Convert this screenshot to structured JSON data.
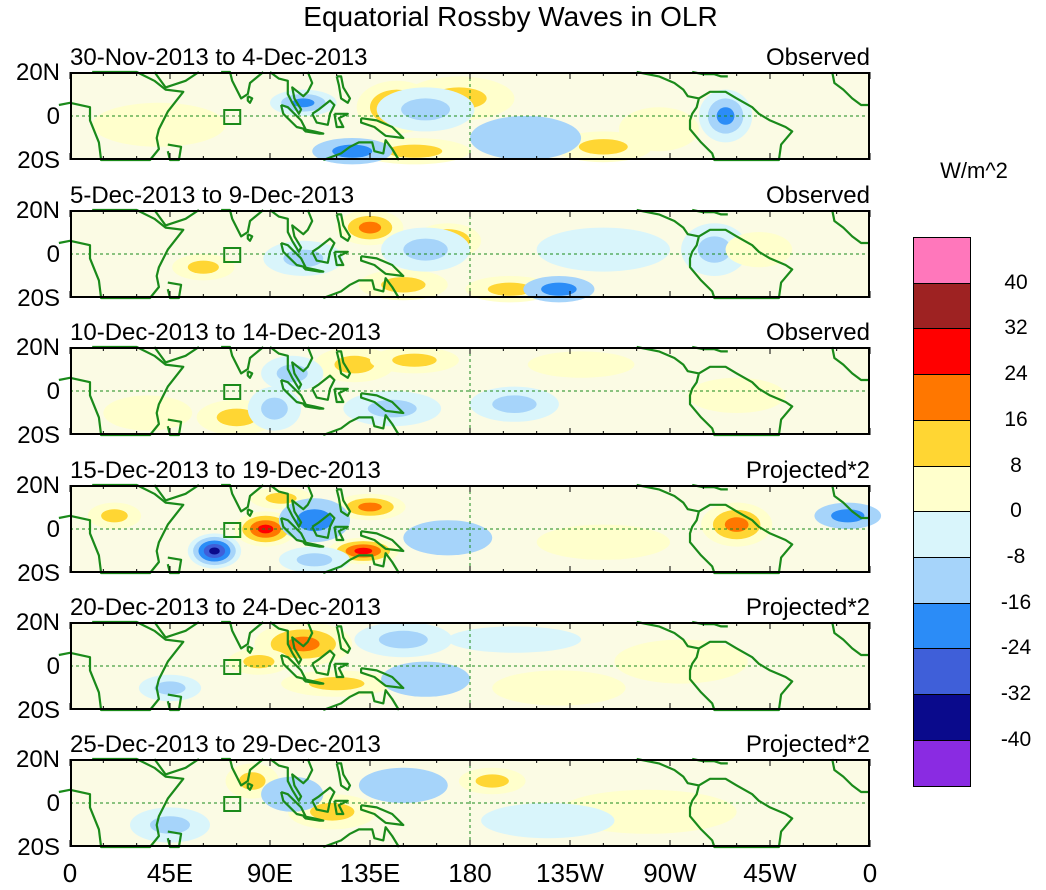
{
  "title": "Equatorial Rossby Waves in OLR",
  "units": "W/m^2",
  "lat_labels": [
    "20N",
    "0",
    "20S"
  ],
  "lon_labels": [
    "0",
    "45E",
    "90E",
    "135E",
    "180",
    "135W",
    "90W",
    "45W",
    "0"
  ],
  "colors": {
    "land_outline": "#1a8a1a",
    "equator_line": "#1a8a1a",
    "scale": [
      "#ff77bb",
      "#9e2222",
      "#ff0000",
      "#ff7700",
      "#ffd633",
      "#ffffcc",
      "#d9f5fb",
      "#a6d4fa",
      "#2b8cf7",
      "#3f5fd9",
      "#0a0a8c",
      "#8a2be2"
    ]
  },
  "legend": {
    "labels": [
      "40",
      "32",
      "24",
      "16",
      "8",
      "0",
      "-8",
      "-16",
      "-24",
      "-32",
      "-40"
    ]
  },
  "panels": [
    {
      "period": "30-Nov-2013 to 4-Dec-2013",
      "kind": "Observed",
      "anomalies": [
        {
          "lon": 147,
          "lat": 4,
          "dlon": 18,
          "dlat": 12,
          "v": 20
        },
        {
          "lon": 175,
          "lat": 8,
          "dlon": 25,
          "dlat": 10,
          "v": 14
        },
        {
          "lon": 155,
          "lat": -16,
          "dlon": 25,
          "dlat": 6,
          "v": 12
        },
        {
          "lon": 240,
          "lat": -14,
          "dlon": 22,
          "dlat": 7,
          "v": 10
        },
        {
          "lon": 265,
          "lat": -6,
          "dlon": 18,
          "dlat": 10,
          "v": 8
        },
        {
          "lon": 105,
          "lat": 6,
          "dlon": 15,
          "dlat": 6,
          "v": -18
        },
        {
          "lon": 160,
          "lat": 3,
          "dlon": 22,
          "dlat": 10,
          "v": -14
        },
        {
          "lon": 127,
          "lat": -16,
          "dlon": 18,
          "dlat": 6,
          "v": -16
        },
        {
          "lon": 295,
          "lat": 0,
          "dlon": 12,
          "dlat": 12,
          "v": -20
        },
        {
          "lon": 205,
          "lat": -10,
          "dlon": 25,
          "dlat": 10,
          "v": -8
        },
        {
          "lon": 40,
          "lat": -4,
          "dlon": 30,
          "dlat": 10,
          "v": 4
        }
      ]
    },
    {
      "period": "5-Dec-2013 to 9-Dec-2013",
      "kind": "Observed",
      "anomalies": [
        {
          "lon": 135,
          "lat": 12,
          "dlon": 15,
          "dlat": 8,
          "v": 18
        },
        {
          "lon": 170,
          "lat": 6,
          "dlon": 15,
          "dlat": 8,
          "v": 18
        },
        {
          "lon": 60,
          "lat": -6,
          "dlon": 14,
          "dlat": 6,
          "v": 12
        },
        {
          "lon": 150,
          "lat": -14,
          "dlon": 20,
          "dlat": 7,
          "v": 12
        },
        {
          "lon": 198,
          "lat": -16,
          "dlon": 20,
          "dlat": 6,
          "v": 16
        },
        {
          "lon": 105,
          "lat": -2,
          "dlon": 18,
          "dlat": 8,
          "v": -14
        },
        {
          "lon": 160,
          "lat": 2,
          "dlon": 20,
          "dlat": 10,
          "v": -12
        },
        {
          "lon": 220,
          "lat": -16,
          "dlon": 16,
          "dlat": 6,
          "v": -16
        },
        {
          "lon": 290,
          "lat": 2,
          "dlon": 15,
          "dlat": 12,
          "v": -10
        },
        {
          "lon": 310,
          "lat": 2,
          "dlon": 15,
          "dlat": 8,
          "v": 8
        },
        {
          "lon": 240,
          "lat": 2,
          "dlon": 30,
          "dlat": 10,
          "v": -6
        }
      ]
    },
    {
      "period": "10-Dec-2013 to 14-Dec-2013",
      "kind": "Observed",
      "anomalies": [
        {
          "lon": 128,
          "lat": 12,
          "dlon": 18,
          "dlat": 8,
          "v": 14
        },
        {
          "lon": 75,
          "lat": -12,
          "dlon": 18,
          "dlat": 8,
          "v": 12
        },
        {
          "lon": 155,
          "lat": 14,
          "dlon": 20,
          "dlat": 6,
          "v": 10
        },
        {
          "lon": 35,
          "lat": -10,
          "dlon": 20,
          "dlat": 8,
          "v": 8
        },
        {
          "lon": 100,
          "lat": 8,
          "dlon": 14,
          "dlat": 8,
          "v": -14
        },
        {
          "lon": 92,
          "lat": -8,
          "dlon": 12,
          "dlat": 10,
          "v": -12
        },
        {
          "lon": 145,
          "lat": -8,
          "dlon": 22,
          "dlat": 8,
          "v": -10
        },
        {
          "lon": 200,
          "lat": -6,
          "dlon": 20,
          "dlat": 8,
          "v": -10
        },
        {
          "lon": 230,
          "lat": 12,
          "dlon": 24,
          "dlat": 6,
          "v": 6
        },
        {
          "lon": 300,
          "lat": -2,
          "dlon": 22,
          "dlat": 8,
          "v": 8
        }
      ]
    },
    {
      "period": "15-Dec-2013 to 19-Dec-2013",
      "kind": "Projected*2",
      "anomalies": [
        {
          "lon": 88,
          "lat": 0,
          "dlon": 14,
          "dlat": 8,
          "v": 28
        },
        {
          "lon": 132,
          "lat": -10,
          "dlon": 16,
          "dlat": 6,
          "v": 26
        },
        {
          "lon": 135,
          "lat": 10,
          "dlon": 16,
          "dlat": 6,
          "v": 18
        },
        {
          "lon": 95,
          "lat": 14,
          "dlon": 14,
          "dlat": 5,
          "v": 16
        },
        {
          "lon": 65,
          "lat": -10,
          "dlon": 12,
          "dlat": 8,
          "v": -34
        },
        {
          "lon": 110,
          "lat": 4,
          "dlon": 16,
          "dlat": 10,
          "v": -16
        },
        {
          "lon": 110,
          "lat": -14,
          "dlon": 16,
          "dlat": 6,
          "v": -12
        },
        {
          "lon": 300,
          "lat": 2,
          "dlon": 16,
          "dlat": 10,
          "v": 18
        },
        {
          "lon": 350,
          "lat": 6,
          "dlon": 15,
          "dlat": 6,
          "v": -16
        },
        {
          "lon": 20,
          "lat": 6,
          "dlon": 12,
          "dlat": 6,
          "v": 10
        },
        {
          "lon": 170,
          "lat": -4,
          "dlon": 20,
          "dlat": 8,
          "v": -8
        },
        {
          "lon": 240,
          "lat": -6,
          "dlon": 30,
          "dlat": 8,
          "v": 6
        }
      ]
    },
    {
      "period": "20-Dec-2013 to 24-Dec-2013",
      "kind": "Projected*2",
      "anomalies": [
        {
          "lon": 105,
          "lat": 10,
          "dlon": 22,
          "dlat": 10,
          "v": 22
        },
        {
          "lon": 85,
          "lat": 2,
          "dlon": 14,
          "dlat": 6,
          "v": 14
        },
        {
          "lon": 120,
          "lat": -8,
          "dlon": 25,
          "dlat": 6,
          "v": 10
        },
        {
          "lon": 45,
          "lat": -10,
          "dlon": 14,
          "dlat": 6,
          "v": -14
        },
        {
          "lon": 150,
          "lat": 12,
          "dlon": 22,
          "dlat": 8,
          "v": -10
        },
        {
          "lon": 160,
          "lat": -6,
          "dlon": 20,
          "dlat": 8,
          "v": -8
        },
        {
          "lon": 275,
          "lat": 2,
          "dlon": 30,
          "dlat": 10,
          "v": 6
        },
        {
          "lon": 220,
          "lat": -10,
          "dlon": 30,
          "dlat": 8,
          "v": 6
        },
        {
          "lon": 200,
          "lat": 12,
          "dlon": 30,
          "dlat": 6,
          "v": -6
        }
      ]
    },
    {
      "period": "25-Dec-2013 to 29-Dec-2013",
      "kind": "Projected*2",
      "anomalies": [
        {
          "lon": 82,
          "lat": 10,
          "dlon": 12,
          "dlat": 8,
          "v": 12
        },
        {
          "lon": 118,
          "lat": -4,
          "dlon": 20,
          "dlat": 8,
          "v": 10
        },
        {
          "lon": 190,
          "lat": 10,
          "dlon": 15,
          "dlat": 6,
          "v": 10
        },
        {
          "lon": 45,
          "lat": -10,
          "dlon": 18,
          "dlat": 8,
          "v": -10
        },
        {
          "lon": 100,
          "lat": 4,
          "dlon": 14,
          "dlat": 8,
          "v": -8
        },
        {
          "lon": 150,
          "lat": 8,
          "dlon": 20,
          "dlat": 8,
          "v": -8
        },
        {
          "lon": 260,
          "lat": -4,
          "dlon": 40,
          "dlat": 10,
          "v": 5
        },
        {
          "lon": 215,
          "lat": -8,
          "dlon": 30,
          "dlat": 8,
          "v": -6
        }
      ]
    }
  ]
}
